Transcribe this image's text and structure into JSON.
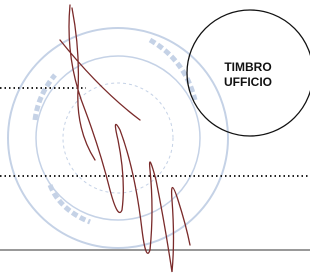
{
  "stamp_box": {
    "line1": "TIMBRO",
    "line2": "UFFICIO"
  }
}
